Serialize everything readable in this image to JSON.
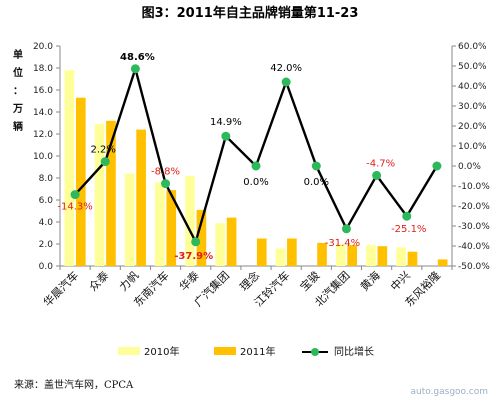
{
  "chart_data": {
    "type": "bar",
    "title": "图3：2011年自主品牌销量第11-23",
    "ylabel_left": [
      "单",
      "位",
      "：",
      "万",
      "辆"
    ],
    "y_left_ticks": [
      "0.0",
      "2.0",
      "4.0",
      "6.0",
      "8.0",
      "10.0",
      "12.0",
      "14.0",
      "16.0",
      "18.0",
      "20.0"
    ],
    "y_left_range": [
      0,
      20
    ],
    "y_right_ticks": [
      "-50.0%",
      "-40.0%",
      "-30.0%",
      "-20.0%",
      "-10.0%",
      "0.0%",
      "10.0%",
      "20.0%",
      "30.0%",
      "40.0%",
      "50.0%",
      "60.0%"
    ],
    "y_right_range": [
      -50,
      60
    ],
    "categories": [
      "华晨汽车",
      "众泰",
      "力帆",
      "东南汽车",
      "华泰",
      "广汽集团",
      "理念",
      "江铃汽车",
      "宝骏",
      "北汽集团",
      "黄海",
      "中兴",
      "东风裕隆"
    ],
    "series": [
      {
        "name": "2010年",
        "values": [
          17.8,
          12.9,
          8.4,
          7.6,
          8.2,
          3.9,
          0,
          1.6,
          0,
          2.0,
          1.9,
          1.7,
          0
        ]
      },
      {
        "name": "2011年",
        "values": [
          15.3,
          13.2,
          12.4,
          6.9,
          5.1,
          4.4,
          2.5,
          2.5,
          2.1,
          1.9,
          1.8,
          1.3,
          0.6
        ]
      }
    ],
    "growth": {
      "name": "同比增长",
      "values": [
        -14.3,
        2.2,
        48.6,
        -8.8,
        -37.9,
        14.9,
        0.0,
        42.0,
        0.0,
        -31.4,
        -4.7,
        -25.1,
        0.0
      ],
      "labels": [
        "-14.3%",
        "2.2%",
        "48.6%",
        "-8.8%",
        "-37.9%",
        "14.9%",
        "0.0%",
        "42.0%",
        "0.0%",
        "-31.4%",
        "-4.7%",
        "-25.1%",
        ""
      ]
    },
    "legend": [
      "2010年",
      "2011年",
      "同比增长"
    ],
    "legend_position": "bottom",
    "grid": false
  },
  "source": "来源：盖世汽车网，CPCA",
  "watermark": "auto.gasgoo.com",
  "colors": {
    "series_2010": "#ffff99",
    "series_2011": "#ffc000",
    "line": "#000000",
    "marker": "#2eb85c",
    "label_negative": "#e0201b",
    "label_positive": "#000000",
    "label_highlight": "#000000"
  }
}
